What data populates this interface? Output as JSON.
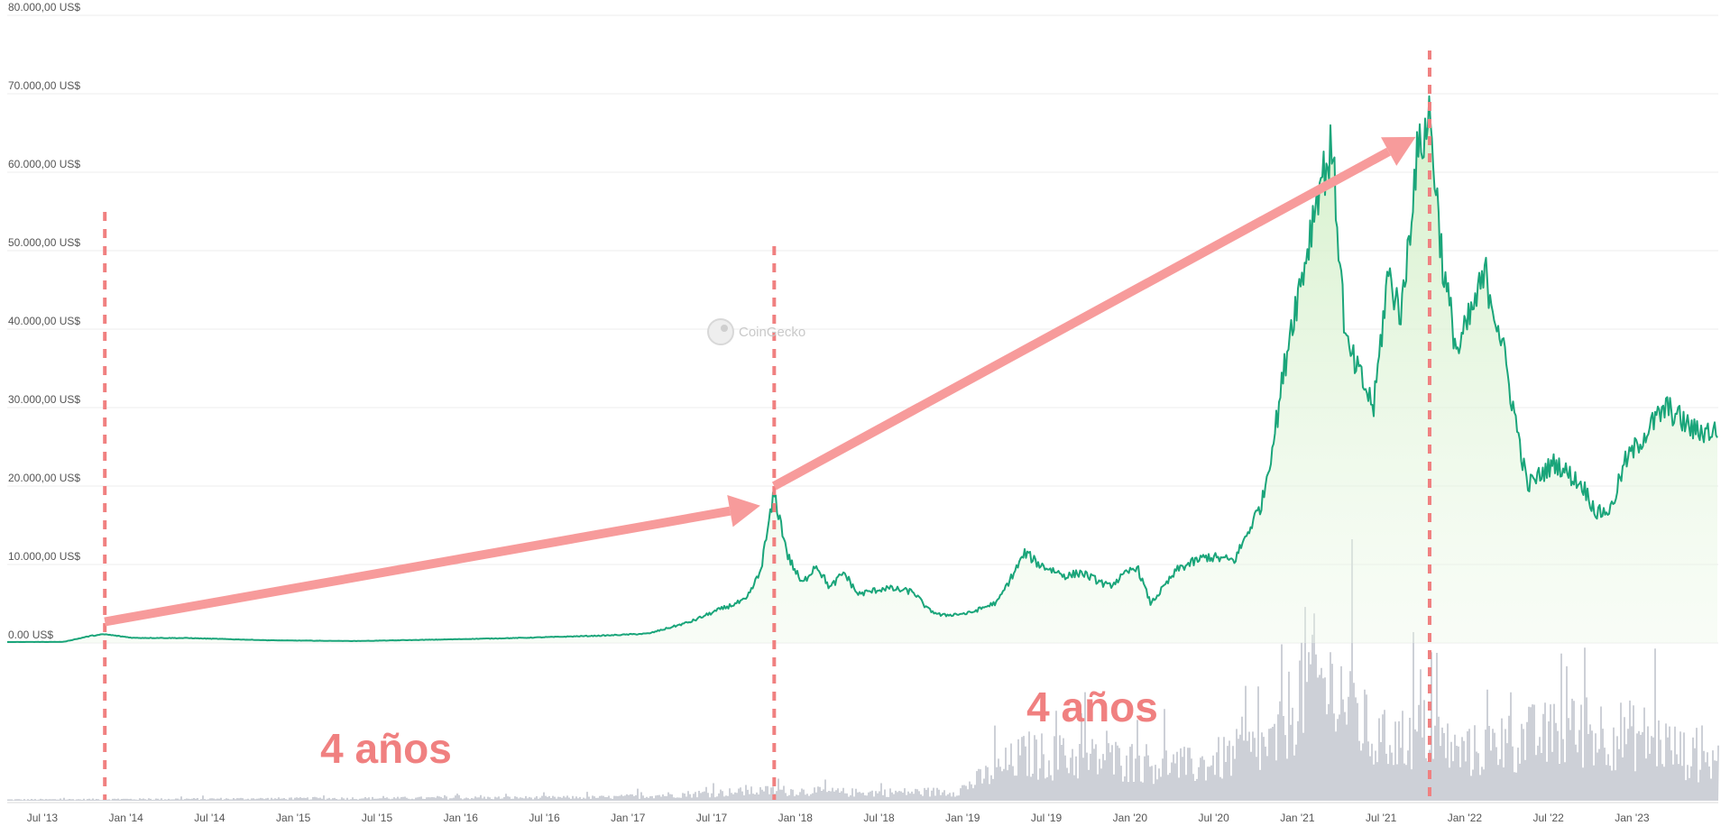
{
  "watermark": "CoinGecko",
  "annotations": [
    {
      "text": "4 años",
      "between": [
        "Dec 2013",
        "Dec 2017"
      ]
    },
    {
      "text": "4 años",
      "between": [
        "Dec 2017",
        "Nov 2021"
      ]
    }
  ],
  "colors": {
    "price_line": "#1aa57a",
    "area_fill": "#d7f1cc",
    "volume": "#c8cbd3",
    "grid": "#ececec",
    "annotation": "#f08080",
    "arrow": "#f79b9b",
    "axis_text": "#555555"
  },
  "chart_data": {
    "type": "area",
    "title": "",
    "xlabel": "",
    "ylabel": "",
    "ylim": [
      0,
      80000
    ],
    "y_ticks": [
      "80.000,00 US$",
      "70.000,00 US$",
      "60.000,00 US$",
      "50.000,00 US$",
      "40.000,00 US$",
      "30.000,00 US$",
      "20.000,00 US$",
      "10.000,00 US$",
      "0.00 US$"
    ],
    "y_tick_values": [
      80000,
      70000,
      60000,
      50000,
      40000,
      30000,
      20000,
      10000,
      0
    ],
    "x_ticks": [
      "Jul '13",
      "Jan '14",
      "Jul '14",
      "Jan '15",
      "Jul '15",
      "Jan '16",
      "Jul '16",
      "Jan '17",
      "Jul '17",
      "Jan '18",
      "Jul '18",
      "Jan '19",
      "Jul '19",
      "Jan '20",
      "Jul '20",
      "Jan '21",
      "Jul '21",
      "Jan '22",
      "Jul '22",
      "Jan '23"
    ],
    "x_tick_dates": [
      "2013-07",
      "2014-01",
      "2014-07",
      "2015-01",
      "2015-07",
      "2016-01",
      "2016-07",
      "2017-01",
      "2017-07",
      "2018-01",
      "2018-07",
      "2019-01",
      "2019-07",
      "2020-01",
      "2020-07",
      "2021-01",
      "2021-07",
      "2022-01",
      "2022-07",
      "2023-01"
    ],
    "grid": true,
    "series": [
      {
        "unit": "US$",
        "points": [
          [
            "2013-05",
            120
          ],
          [
            "2013-09",
            130
          ],
          [
            "2013-11",
            900
          ],
          [
            "2013-12",
            1100
          ],
          [
            "2014-02",
            650
          ],
          [
            "2014-06",
            620
          ],
          [
            "2014-12",
            330
          ],
          [
            "2015-06",
            240
          ],
          [
            "2015-12",
            430
          ],
          [
            "2016-06",
            650
          ],
          [
            "2016-12",
            950
          ],
          [
            "2017-03",
            1200
          ],
          [
            "2017-05",
            2200
          ],
          [
            "2017-06",
            2700
          ],
          [
            "2017-08",
            4200
          ],
          [
            "2017-10",
            5500
          ],
          [
            "2017-11",
            9000
          ],
          [
            "2017-12",
            19000
          ],
          [
            "2018-01",
            11000
          ],
          [
            "2018-02",
            7500
          ],
          [
            "2018-03",
            10000
          ],
          [
            "2018-04",
            7000
          ],
          [
            "2018-05",
            9000
          ],
          [
            "2018-06",
            6200
          ],
          [
            "2018-08",
            7000
          ],
          [
            "2018-10",
            6500
          ],
          [
            "2018-11",
            4300
          ],
          [
            "2018-12",
            3500
          ],
          [
            "2019-02",
            3800
          ],
          [
            "2019-04",
            5200
          ],
          [
            "2019-06",
            11500
          ],
          [
            "2019-07",
            10000
          ],
          [
            "2019-09",
            8500
          ],
          [
            "2019-10",
            9000
          ],
          [
            "2019-12",
            7200
          ],
          [
            "2020-02",
            9800
          ],
          [
            "2020-03",
            5000
          ],
          [
            "2020-05",
            9500
          ],
          [
            "2020-07",
            11000
          ],
          [
            "2020-09",
            10500
          ],
          [
            "2020-11",
            18000
          ],
          [
            "2020-12",
            28000
          ],
          [
            "2021-01",
            40000
          ],
          [
            "2021-02",
            48000
          ],
          [
            "2021-03",
            58000
          ],
          [
            "2021-04",
            63000
          ],
          [
            "2021-05",
            38000
          ],
          [
            "2021-06",
            34000
          ],
          [
            "2021-07",
            30000
          ],
          [
            "2021-08",
            47000
          ],
          [
            "2021-09",
            42000
          ],
          [
            "2021-10",
            61000
          ],
          [
            "2021-11",
            67500
          ],
          [
            "2021-12",
            47000
          ],
          [
            "2022-01",
            37000
          ],
          [
            "2022-03",
            47000
          ],
          [
            "2022-04",
            40000
          ],
          [
            "2022-05",
            30000
          ],
          [
            "2022-06",
            20000
          ],
          [
            "2022-08",
            23000
          ],
          [
            "2022-10",
            20000
          ],
          [
            "2022-11",
            16500
          ],
          [
            "2022-12",
            17000
          ],
          [
            "2023-01",
            23000
          ],
          [
            "2023-03",
            28000
          ],
          [
            "2023-04",
            30000
          ],
          [
            "2023-06",
            27000
          ]
        ]
      },
      {
        "name": "volume",
        "points": [
          [
            "2013-05",
            0.1
          ],
          [
            "2016-12",
            0.3
          ],
          [
            "2017-06",
            0.6
          ],
          [
            "2017-12",
            0.9
          ],
          [
            "2018-06",
            0.7
          ],
          [
            "2019-01",
            0.8
          ],
          [
            "2019-06",
            4.0
          ],
          [
            "2020-01",
            3.5
          ],
          [
            "2020-06",
            3.0
          ],
          [
            "2020-12",
            5.0
          ],
          [
            "2021-02",
            11.0
          ],
          [
            "2021-05",
            9.0
          ],
          [
            "2021-07",
            5.0
          ],
          [
            "2021-11",
            6.0
          ],
          [
            "2022-01",
            4.0
          ],
          [
            "2022-06",
            5.5
          ],
          [
            "2022-11",
            6.0
          ],
          [
            "2023-03",
            5.5
          ],
          [
            "2023-06",
            3.5
          ]
        ]
      }
    ],
    "markers": [
      {
        "type": "vertical-dashed",
        "x": "2013-12"
      },
      {
        "type": "vertical-dashed",
        "x": "2017-12"
      },
      {
        "type": "vertical-dashed",
        "x": "2021-11"
      },
      {
        "type": "arrow",
        "from": [
          "2013-12",
          2700
        ],
        "to": [
          "2017-11",
          17500
        ]
      },
      {
        "type": "arrow",
        "from": [
          "2017-12",
          20000
        ],
        "to": [
          "2021-10",
          64500
        ]
      }
    ]
  }
}
